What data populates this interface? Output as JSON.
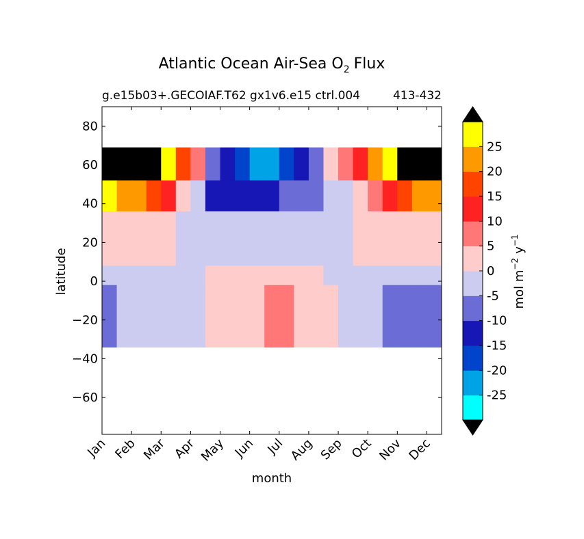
{
  "chart_data": {
    "type": "heatmap",
    "title": "Atlantic Ocean Air-Sea O",
    "title_subscript": "2",
    "title_suffix": "Flux",
    "subtitle_left": "g.e15b03+.GECOIAF.T62 gx1v6.e15 ctrl.004",
    "subtitle_right": "413-432",
    "xlabel": "month",
    "ylabel": "latitude",
    "x_ticks": [
      "Jan",
      "Feb",
      "Mar",
      "Apr",
      "May",
      "Jun",
      "Jul",
      "Aug",
      "Sep",
      "Oct",
      "Nov",
      "Dec"
    ],
    "y_ticks": [
      80,
      60,
      40,
      20,
      0,
      -20,
      -40,
      -60
    ],
    "y_tick_labels": [
      "80",
      "60",
      "40",
      "20",
      "0",
      "−20",
      "−40",
      "−60"
    ],
    "xlim": [
      1,
      12.5
    ],
    "ylim": [
      -79,
      90
    ],
    "data_lat_range": [
      -34,
      69
    ],
    "colorbar": {
      "label": "mol m",
      "label_exp1": "−2",
      "label_mid": "y",
      "label_exp2": "−1",
      "levels": [
        -30,
        -25,
        -20,
        -15,
        -10,
        -5,
        0,
        5,
        10,
        15,
        20,
        25,
        30
      ],
      "tick_labels": [
        "-25",
        "-20",
        "-15",
        "-10",
        "-5",
        "0",
        "5",
        "10",
        "15",
        "20",
        "25"
      ],
      "colors": [
        "#00ffff",
        "#00a3e6",
        "#0044cc",
        "#1717b5",
        "#6c6cd6",
        "#ccccf0",
        "#ffcccc",
        "#ff7777",
        "#ff2222",
        "#ff4400",
        "#ff9900",
        "#ffff00"
      ],
      "extend_low_color": "#000000",
      "extend_high_color": "#000000"
    },
    "field": {
      "months": [
        1,
        2,
        3,
        4,
        5,
        6,
        7,
        8,
        9,
        10,
        11,
        12
      ],
      "regions": [
        {
          "name": "north-high-lat",
          "lat": [
            52,
            69
          ],
          "values": [
            32,
            32,
            31,
            12,
            -11,
            -20,
            -22,
            -8,
            3,
            18,
            31,
            32
          ]
        },
        {
          "name": "north-mid-lat",
          "lat": [
            36,
            52
          ],
          "values": [
            26,
            24,
            15,
            1,
            -14,
            -12,
            -11,
            -6,
            -3,
            6,
            17,
            24
          ]
        },
        {
          "name": "subtropical-north",
          "lat": [
            8,
            36
          ],
          "values": [
            3,
            2,
            1,
            -1,
            -2,
            -2,
            -2,
            -2,
            -1,
            1,
            3,
            4
          ]
        },
        {
          "name": "equator",
          "lat": [
            -2,
            8
          ],
          "values": [
            -2,
            -2,
            -2,
            -2,
            1,
            2,
            2,
            1,
            -2,
            -2,
            -2,
            -2
          ]
        },
        {
          "name": "south-tropics",
          "lat": [
            -34,
            -2
          ],
          "values": [
            -6,
            -3,
            -2,
            -1,
            2,
            4,
            6,
            4,
            -1,
            -3,
            -6,
            -7
          ]
        }
      ]
    }
  }
}
